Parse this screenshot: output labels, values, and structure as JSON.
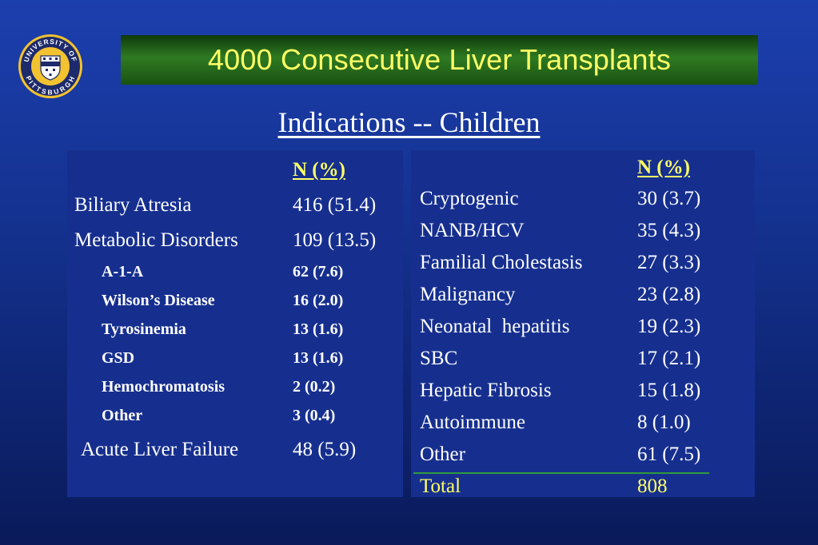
{
  "title": "4000 Consecutive Liver Transplants",
  "subtitle": "Indications -- Children",
  "logo": {
    "text_top": "UNIVERSITY OF",
    "text_bottom": "PITTSBURGH",
    "colors": [
      "#f2c230",
      "#1d2a6b",
      "#ffffff"
    ]
  },
  "left_table": {
    "header": "N (%)",
    "rows": [
      {
        "label": "Biliary Atresia",
        "value": "416 (51.4)"
      },
      {
        "label": "Metabolic Disorders",
        "value": "109 (13.5)"
      },
      {
        "label": "A-1-A",
        "value": "62 (7.6)"
      },
      {
        "label": "Wilson’s Disease",
        "value": "16 (2.0)"
      },
      {
        "label": "Tyrosinemia",
        "value": "13 (1.6)"
      },
      {
        "label": "GSD",
        "value": "13 (1.6)"
      },
      {
        "label": "Hemochromatosis",
        "value": "2 (0.2)"
      },
      {
        "label": "Other",
        "value": "3 (0.4)"
      },
      {
        "label": "Acute Liver Failure",
        "value": "48 (5.9)"
      }
    ]
  },
  "right_table": {
    "header": "N (%)",
    "rows": [
      {
        "label": "Cryptogenic",
        "value": "30 (3.7)"
      },
      {
        "label": "NANB/HCV",
        "value": "35 (4.3)"
      },
      {
        "label": "Familial Cholestasis",
        "value": "27 (3.3)"
      },
      {
        "label": "Malignancy",
        "value": "23 (2.8)"
      },
      {
        "label": "Neonatal  hepatitis",
        "value": "19 (2.3)"
      },
      {
        "label": "SBC",
        "value": "17 (2.1)"
      },
      {
        "label": "Hepatic Fibrosis",
        "value": "15 (1.8)"
      },
      {
        "label": "Autoimmune",
        "value": "8 (1.0)"
      },
      {
        "label": "Other",
        "value": "61 (7.5)"
      }
    ],
    "total": {
      "label": "Total",
      "value": "808"
    }
  },
  "colors": {
    "accent_yellow": "#ffff66",
    "title_green": "#2e7a22",
    "divider_green": "#2f9a3a"
  }
}
